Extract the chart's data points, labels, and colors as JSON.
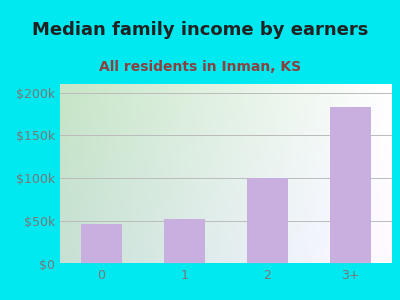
{
  "title": "Median family income by earners",
  "subtitle": "All residents in Inman, KS",
  "categories": [
    "0",
    "1",
    "2",
    "3+"
  ],
  "values": [
    47000,
    52000,
    100000,
    183000
  ],
  "bar_color": "#c9aee0",
  "title_fontsize": 13,
  "subtitle_fontsize": 10,
  "subtitle_color": "#8b4040",
  "title_color": "#222222",
  "yticks": [
    0,
    50000,
    100000,
    150000,
    200000
  ],
  "ytick_labels": [
    "$0",
    "$50k",
    "$100k",
    "$150k",
    "$200k"
  ],
  "ylim": [
    0,
    210000
  ],
  "background_outer": "#00e8f0",
  "background_inner_left": "#c8dfc0",
  "background_inner_right": "#f8fff8",
  "grid_color": "#bbbbbb",
  "tick_color": "#777777"
}
